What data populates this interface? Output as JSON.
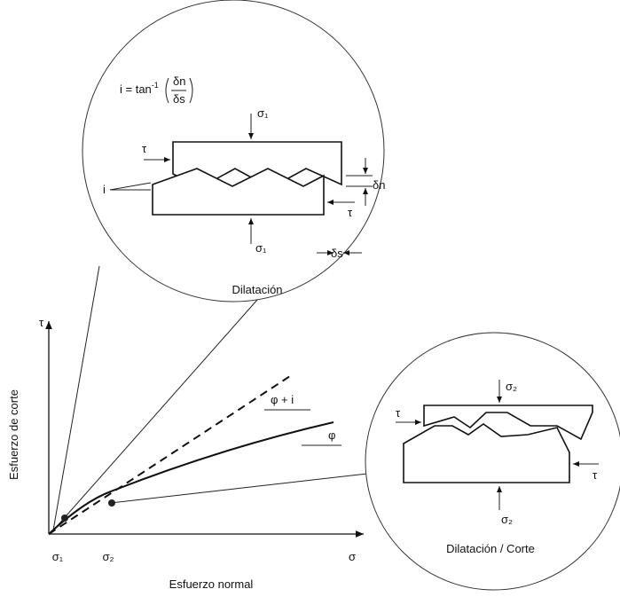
{
  "top_detail": {
    "formula_lhs": "i = tan",
    "formula_exp": "-1",
    "formula_num": "δn",
    "formula_den": "δs",
    "sigma_top": "σ₁",
    "sigma_bottom": "σ₁",
    "tau_left": "τ",
    "tau_right": "τ",
    "angle_i": "i",
    "delta_n": "δn",
    "delta_s": "δs",
    "caption": "Dilatación"
  },
  "chart": {
    "y_axis_symbol": "τ",
    "y_axis_label": "Esfuerzo de corte",
    "x_axis_symbol": "σ",
    "x_axis_label": "Esfuerzo normal",
    "x_tick_1": "σ₁",
    "x_tick_2": "σ₂",
    "angle_phi_i": "φ + i",
    "angle_phi": "φ"
  },
  "right_detail": {
    "sigma_top": "σ₂",
    "sigma_bottom": "σ₂",
    "tau_left": "τ",
    "tau_right": "τ",
    "caption": "Dilatación / Corte"
  }
}
